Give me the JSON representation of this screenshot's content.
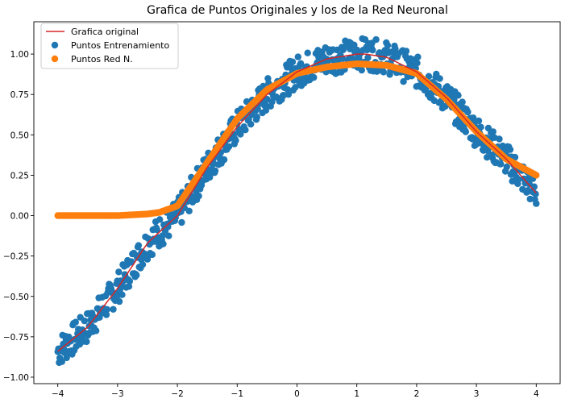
{
  "chart_data": {
    "type": "scatter",
    "title": "Grafica de Puntos Originales y los de la Red Neuronal",
    "xlabel": "",
    "ylabel": "",
    "xlim": [
      -4.4,
      4.4
    ],
    "ylim": [
      -1.04,
      1.2
    ],
    "xticks": [
      -4,
      -3,
      -2,
      -1,
      0,
      1,
      2,
      3,
      4
    ],
    "xtick_labels": [
      "−4",
      "−3",
      "−2",
      "−1",
      "0",
      "1",
      "2",
      "3",
      "4"
    ],
    "yticks": [
      -1.0,
      -0.75,
      -0.5,
      -0.25,
      0.0,
      0.25,
      0.5,
      0.75,
      1.0
    ],
    "ytick_labels": [
      "−1.00",
      "−0.75",
      "−0.50",
      "−0.25",
      "0.00",
      "0.25",
      "0.50",
      "0.75",
      "1.00"
    ],
    "grid": false,
    "legend_position": "top-left",
    "series": [
      {
        "name": "Grafica original",
        "kind": "line",
        "color": "#d62728",
        "x": [
          -4.0,
          -3.5,
          -3.0,
          -2.5,
          -2.0,
          -1.5,
          -1.0,
          -0.5,
          0.0,
          0.5,
          1.0,
          1.15,
          1.5,
          2.0,
          2.5,
          3.0,
          3.5,
          4.0
        ],
        "y": [
          -0.84,
          -0.69,
          -0.45,
          -0.17,
          0.0,
          0.3,
          0.55,
          0.75,
          0.89,
          0.97,
          1.0,
          1.0,
          0.98,
          0.89,
          0.73,
          0.52,
          0.35,
          0.14
        ]
      },
      {
        "name": "Puntos Entrenamiento",
        "kind": "scatter-band",
        "color": "#1f77b4",
        "x": [
          -4.0,
          -3.5,
          -3.0,
          -2.5,
          -2.0,
          -1.5,
          -1.0,
          -0.5,
          0.0,
          0.5,
          1.0,
          1.15,
          1.5,
          2.0,
          2.5,
          3.0,
          3.5,
          4.0
        ],
        "y": [
          -0.84,
          -0.69,
          -0.45,
          -0.17,
          0.0,
          0.3,
          0.55,
          0.75,
          0.89,
          0.97,
          1.0,
          1.0,
          0.98,
          0.89,
          0.73,
          0.52,
          0.35,
          0.14
        ],
        "spread": 0.1
      },
      {
        "name": "Puntos Red N.",
        "kind": "scatter",
        "color": "#ff7f0e",
        "x": [
          -4.0,
          -3.5,
          -3.0,
          -2.5,
          -2.3,
          -2.0,
          -1.5,
          -1.0,
          -0.5,
          0.0,
          0.5,
          1.0,
          1.5,
          2.0,
          2.5,
          3.0,
          3.5,
          4.0
        ],
        "y": [
          0.0,
          0.0,
          0.0,
          0.01,
          0.02,
          0.06,
          0.33,
          0.6,
          0.78,
          0.88,
          0.92,
          0.94,
          0.93,
          0.88,
          0.72,
          0.52,
          0.35,
          0.25
        ]
      }
    ]
  }
}
